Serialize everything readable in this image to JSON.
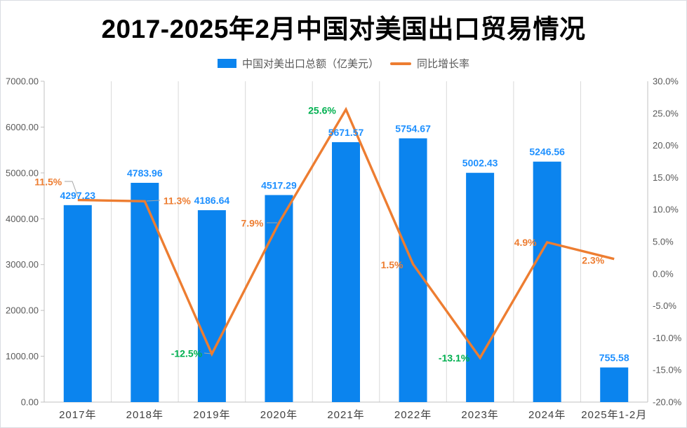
{
  "colors": {
    "bar": "#0b84ee",
    "line": "#ed7d31",
    "value_label": "#1e90ff",
    "growth_normal": "#ed7d31",
    "growth_highlight": "#00b050",
    "grid": "#d9d9d9",
    "axis_line": "#c0c0c0",
    "leader": "#a6a6a6"
  },
  "chart_data": {
    "type": "combo",
    "title": "2017-2025年2月中国对美国出口贸易情况",
    "categories": [
      "2017年",
      "2018年",
      "2019年",
      "2020年",
      "2021年",
      "2022年",
      "2023年",
      "2024年",
      "2025年1-2月"
    ],
    "series": [
      {
        "name": "中国对美出口总额（亿美元）",
        "type": "bar",
        "axis": "left",
        "values": [
          4297.23,
          4783.96,
          4186.64,
          4517.29,
          5671.57,
          5754.67,
          5002.43,
          5246.56,
          755.58
        ],
        "labels": [
          "4297.23",
          "4783.96",
          "4186.64",
          "4517.29",
          "5671.57",
          "5754.67",
          "5002.43",
          "5246.56",
          "755.58"
        ]
      },
      {
        "name": "同比增长率",
        "type": "line",
        "axis": "right",
        "values": [
          11.5,
          11.3,
          -12.5,
          7.9,
          25.6,
          1.5,
          -13.1,
          4.9,
          2.3
        ],
        "labels": [
          "11.5%",
          "11.3%",
          "-12.5%",
          "7.9%",
          "25.6%",
          "1.5%",
          "-13.1%",
          "4.9%",
          "2.3%"
        ],
        "label_colors": [
          "normal",
          "normal",
          "highlight",
          "normal",
          "highlight",
          "normal",
          "highlight",
          "normal",
          "normal"
        ]
      }
    ],
    "left_axis": {
      "min": 0,
      "max": 7000,
      "step": 1000,
      "labels": [
        "0.00",
        "1000.00",
        "2000.00",
        "3000.00",
        "4000.00",
        "5000.00",
        "6000.00",
        "7000.00"
      ]
    },
    "right_axis": {
      "min": -20,
      "max": 30,
      "step": 5,
      "labels": [
        "-20.0%",
        "-15.0%",
        "-10.0%",
        "-5.0%",
        "0.0%",
        "5.0%",
        "10.0%",
        "15.0%",
        "20.0%",
        "25.0%",
        "30.0%"
      ]
    },
    "legend_position": "top",
    "grid": "vertical-only"
  }
}
